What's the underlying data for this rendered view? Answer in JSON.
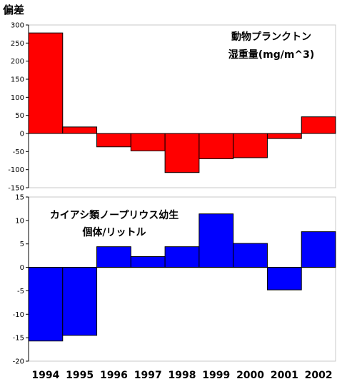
{
  "chart_data": [
    {
      "type": "bar",
      "ylabel": "偏差",
      "annotation": [
        "動物プランクトン",
        "湿重量(mg/m^3)"
      ],
      "categories": [
        "1994",
        "1995",
        "1996",
        "1997",
        "1998",
        "1999",
        "2000",
        "2001",
        "2002"
      ],
      "values": [
        278,
        18,
        -37,
        -48,
        -108,
        -70,
        -67,
        -14,
        46
      ],
      "ylim": [
        -150,
        300
      ],
      "yticks": [
        300,
        250,
        200,
        150,
        100,
        50,
        0,
        -50,
        -100,
        -150
      ],
      "color": "#ff0000"
    },
    {
      "type": "bar",
      "annotation": [
        "カイアシ類ノープリウス幼生",
        "個体/リットル"
      ],
      "categories": [
        "1994",
        "1995",
        "1996",
        "1997",
        "1998",
        "1999",
        "2000",
        "2001",
        "2002"
      ],
      "values": [
        -15.7,
        -14.5,
        4.4,
        2.3,
        4.4,
        11.4,
        5.1,
        -4.8,
        7.6
      ],
      "ylim": [
        -20,
        15
      ],
      "yticks": [
        15,
        10,
        5,
        0,
        -5,
        -10,
        -15,
        -20
      ],
      "color": "#0000ff"
    }
  ],
  "xtick_labels": [
    "1994",
    "1995",
    "1996",
    "1997",
    "1998",
    "1999",
    "2000",
    "2001",
    "2002"
  ]
}
